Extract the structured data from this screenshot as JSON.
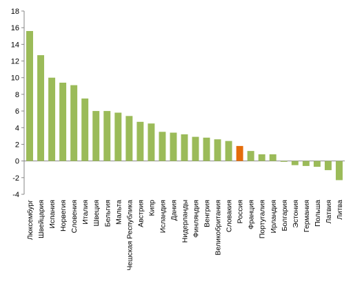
{
  "chart_data": {
    "type": "bar",
    "categories": [
      "Люксембург",
      "Швейцария",
      "Испания",
      "Норвегия",
      "Словения",
      "Италия",
      "Швеция",
      "Бельгия",
      "Мальта",
      "Чешская Республика",
      "Австрия",
      "Кипр",
      "Исландия",
      "Дания",
      "Нидерланды",
      "Финляндия",
      "Венгрия",
      "Великобритания",
      "Словакия",
      "Россия",
      "Франция",
      "Португалия",
      "Ирландия",
      "Болгария",
      "Эстония",
      "Германия",
      "Польша",
      "Латвия",
      "Литва"
    ],
    "values": [
      15.6,
      12.7,
      10.0,
      9.4,
      9.1,
      7.5,
      6.0,
      6.0,
      5.8,
      5.4,
      4.7,
      4.5,
      3.5,
      3.4,
      3.2,
      2.9,
      2.8,
      2.6,
      2.4,
      1.8,
      1.2,
      0.8,
      0.8,
      -0.1,
      -0.5,
      -0.6,
      -0.7,
      -1.1,
      -2.3
    ],
    "highlight": "Россия",
    "ylim": [
      -4,
      18
    ],
    "yticks": [
      -4,
      -2,
      0,
      2,
      4,
      6,
      8,
      10,
      12,
      14,
      16,
      18
    ],
    "grid": false,
    "colors": {
      "bar": "#9bbb59",
      "highlight": "#e46c0a",
      "axis": "#868686"
    },
    "title": "",
    "xlabel": "",
    "ylabel": ""
  }
}
